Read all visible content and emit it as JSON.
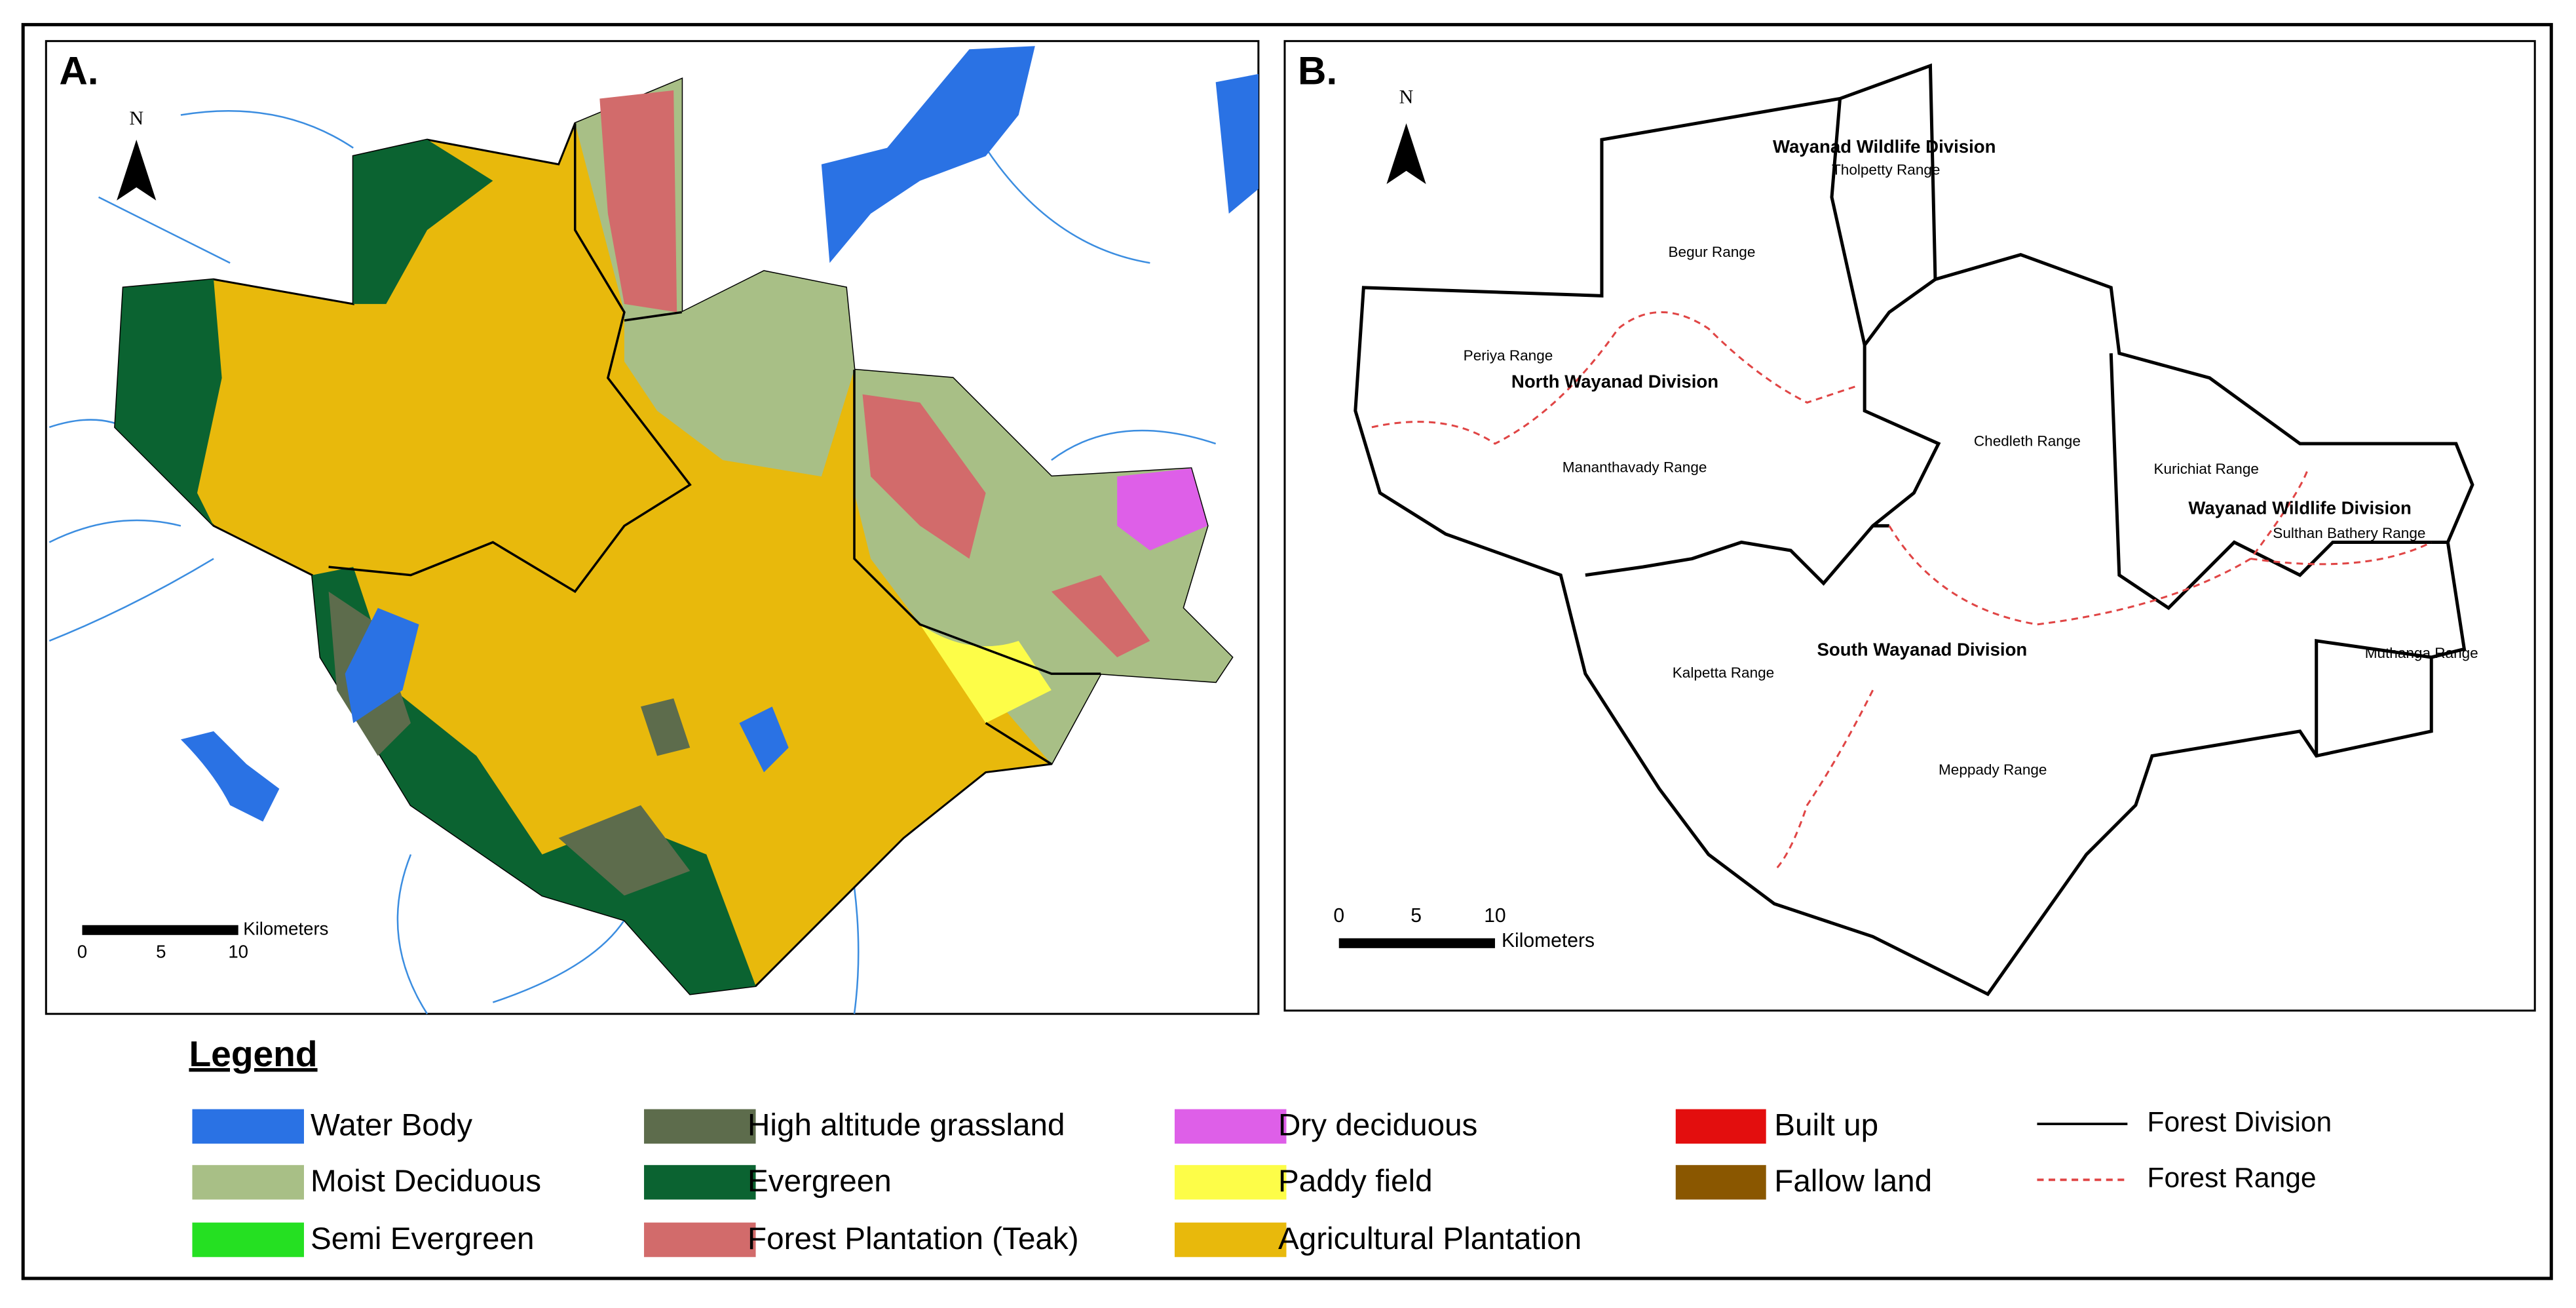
{
  "panel_a": {
    "label": "A.",
    "north": "N",
    "scale": {
      "ticks": [
        "0",
        "5",
        "10"
      ],
      "unit": "Kilometers"
    }
  },
  "panel_b": {
    "label": "B.",
    "north": "N",
    "scale": {
      "ticks": [
        "0",
        "5",
        "10"
      ],
      "unit": "Kilometers"
    },
    "divisions": [
      "Wayanad Wildlife Division",
      "North Wayanad Division",
      "South Wayanad Division",
      "Wayanad Wildlife Division"
    ],
    "ranges": [
      "Tholpetty Range",
      "Begur Range",
      "Periya Range",
      "Mananthavady Range",
      "Chedleth Range",
      "Kurichiat Range",
      "Sulthan Bathery Range",
      "Kalpetta Range",
      "Meppady Range",
      "Muthanga Range"
    ]
  },
  "legend": {
    "title": "Legend",
    "items": [
      {
        "label": "Water Body",
        "color": "#2a72e4"
      },
      {
        "label": "Moist Deciduous",
        "color": "#a8bf86"
      },
      {
        "label": "Semi Evergreen",
        "color": "#25e022"
      },
      {
        "label": "High altitude grassland",
        "color": "#5d6c4c"
      },
      {
        "label": "Evergreen",
        "color": "#0b6331"
      },
      {
        "label": "Forest Plantation (Teak)",
        "color": "#d26b6b"
      },
      {
        "label": "Dry deciduous",
        "color": "#de5fe8"
      },
      {
        "label": "Paddy field",
        "color": "#fdfd48"
      },
      {
        "label": "Agricultural Plantation",
        "color": "#e8b90c"
      },
      {
        "label": "Built up",
        "color": "#e30e0e"
      },
      {
        "label": "Fallow land",
        "color": "#8a5700"
      },
      {
        "label": "Forest Division",
        "color": "#000000",
        "line": "solid"
      },
      {
        "label": "Forest Range",
        "color": "#e04545",
        "line": "dashed"
      }
    ]
  }
}
